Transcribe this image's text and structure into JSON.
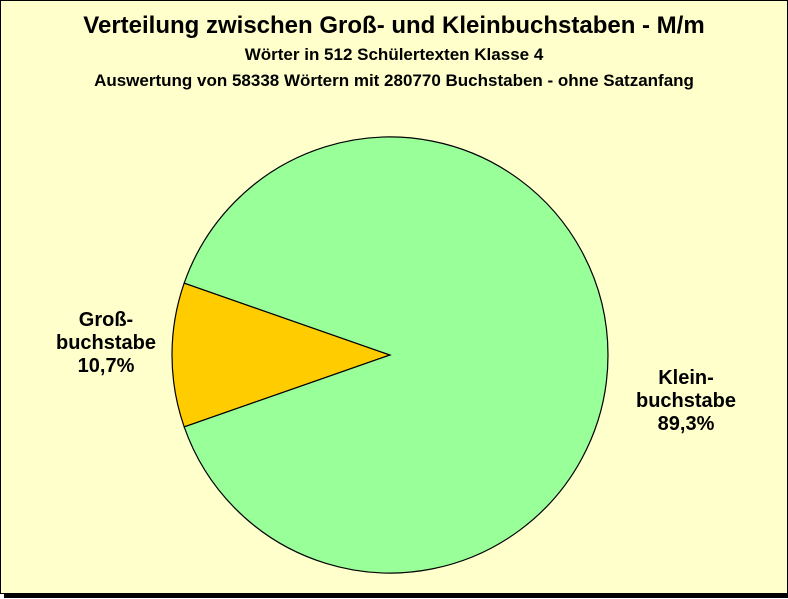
{
  "chart_data": {
    "type": "pie",
    "title": "Verteilung zwischen Groß- und  Kleinbuchstaben - M/m",
    "subtitle_1": "Wörter in 512 Schülertexten Klasse 4",
    "subtitle_2": "Auswertung von 58338 Wörtern mit 280770 Buchstaben - ohne Satzanfang",
    "slices": [
      {
        "name_line1": "Groß-",
        "name_line2": "buchstabe",
        "label_value": "10,7%",
        "value": 10.7,
        "color": "#ffcc00"
      },
      {
        "name_line1": "Klein-",
        "name_line2": "buchstabe",
        "label_value": "89,3%",
        "value": 89.3,
        "color": "#99ff99"
      }
    ]
  },
  "colors": {
    "background": "#ffffcc",
    "outline": "#000000"
  }
}
